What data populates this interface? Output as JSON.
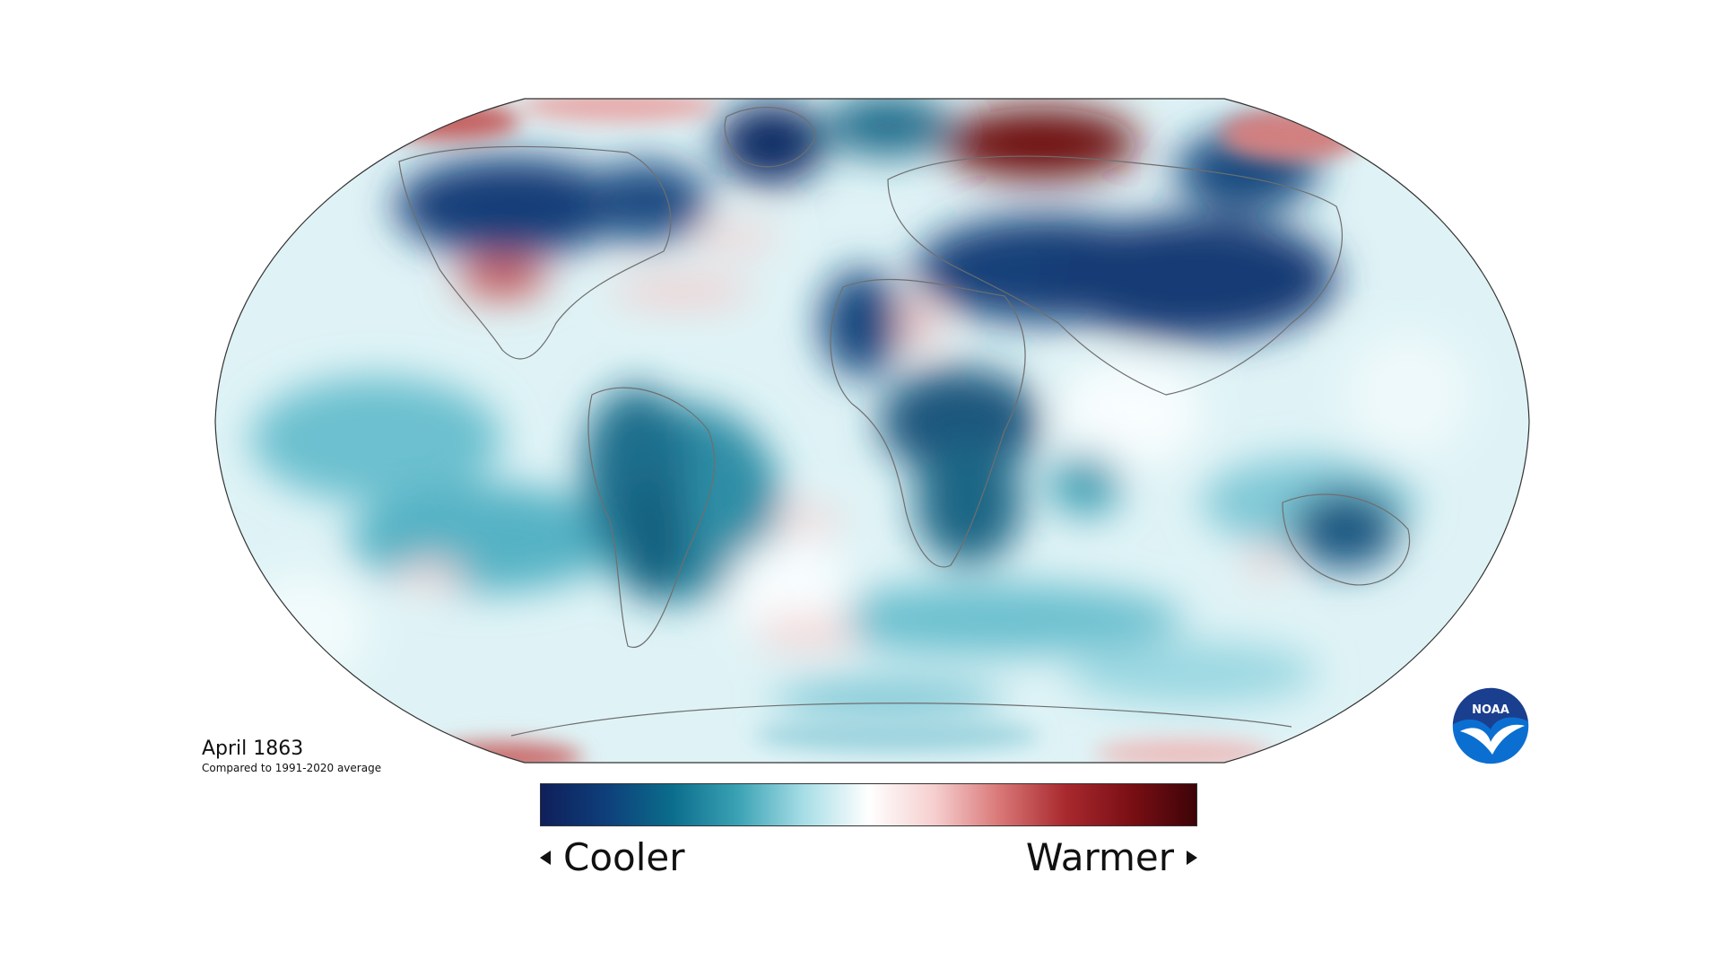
{
  "caption": {
    "title": "April 1863",
    "subtitle": "Compared to 1991-2020 average"
  },
  "legend": {
    "cooler_label": "Cooler",
    "warmer_label": "Warmer",
    "colors": [
      "#0f1f5a",
      "#0e3f7a",
      "#0b6d8c",
      "#3aa2b4",
      "#a6dde6",
      "#ffffff",
      "#f6cfcf",
      "#d97777",
      "#a8292e",
      "#7a0f14",
      "#3d0408"
    ]
  },
  "logo": {
    "text": "NOAA",
    "colors": {
      "top": "#1a3f8f",
      "bottom": "#0b6fd1",
      "bird": "#ffffff"
    }
  },
  "anomaly_colors": {
    "strong_cold": "#0f2a63",
    "cold": "#0d5d80",
    "cool": "#3aa0b5",
    "light_cool": "#bfe9ef",
    "neutral": "#f6fcfd",
    "light_warm": "#f7d4d4",
    "warm": "#d36b6b",
    "strong_warm": "#6e0a10"
  }
}
